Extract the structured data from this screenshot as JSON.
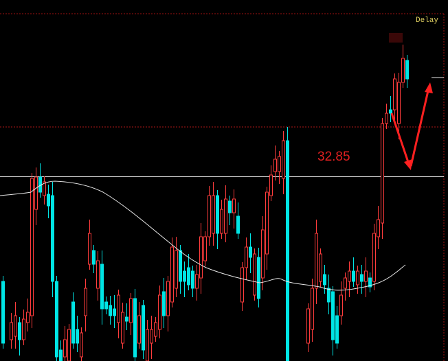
{
  "header": {
    "status": "Delay"
  },
  "annotation": {
    "price": "32.85"
  }
}
